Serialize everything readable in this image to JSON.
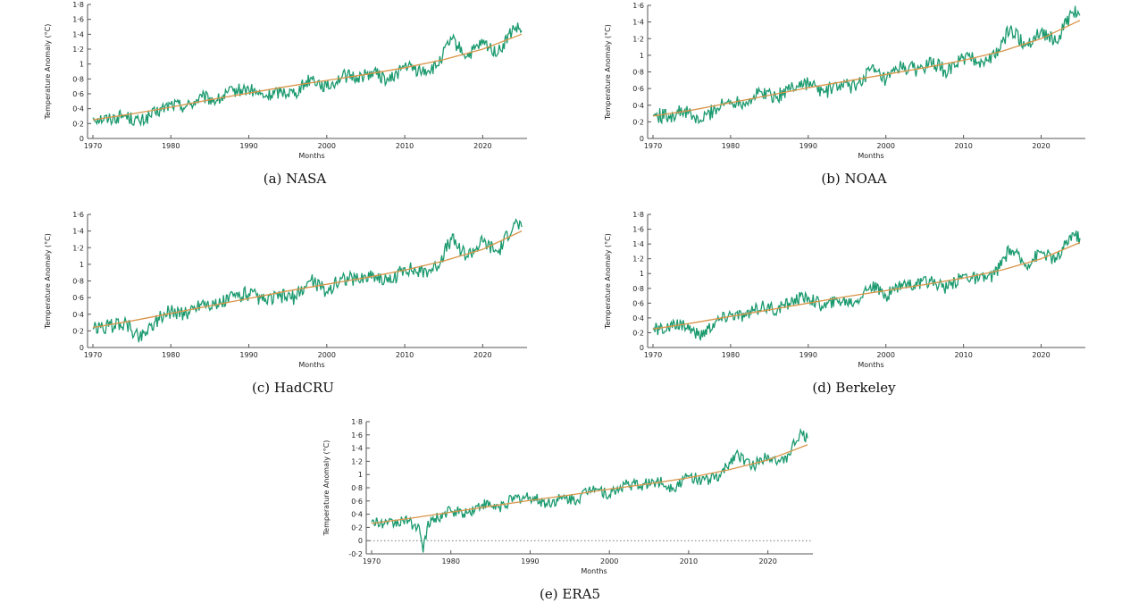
{
  "chart_data": [
    {
      "type": "line",
      "caption": "(a) NASA",
      "xlabel": "Months",
      "ylabel": "Temperature Anomaly (°C)",
      "xlim": [
        1970,
        2025
      ],
      "ylim": [
        0,
        1.8
      ],
      "xticks": [
        1970,
        1980,
        1990,
        2000,
        2010,
        2020
      ],
      "yticks": [
        0,
        0.2,
        0.4,
        0.6,
        0.8,
        1,
        1.2,
        1.4,
        1.6,
        1.8
      ],
      "series": [
        {
          "x": [
            1970,
            1972,
            1974,
            1976,
            1978,
            1980,
            1982,
            1984,
            1986,
            1988,
            1990,
            1992,
            1994,
            1996,
            1998,
            2000,
            2002,
            2004,
            2006,
            2008,
            2010,
            2012,
            2014,
            2016,
            2018,
            2020,
            2022,
            2024,
            2025
          ],
          "y": [
            0.28,
            0.26,
            0.31,
            0.22,
            0.34,
            0.46,
            0.43,
            0.55,
            0.51,
            0.64,
            0.66,
            0.56,
            0.63,
            0.62,
            0.82,
            0.68,
            0.84,
            0.82,
            0.89,
            0.77,
            0.98,
            0.9,
            0.95,
            1.33,
            1.1,
            1.28,
            1.15,
            1.48,
            1.45
          ]
        },
        {
          "x": [
            1970,
            1975,
            1980,
            1985,
            1990,
            1995,
            2000,
            2005,
            2010,
            2015,
            2020,
            2025
          ],
          "y": [
            0.25,
            0.33,
            0.42,
            0.52,
            0.61,
            0.7,
            0.78,
            0.86,
            0.95,
            1.06,
            1.2,
            1.4
          ]
        }
      ]
    },
    {
      "type": "line",
      "caption": "(b) NOAA",
      "xlabel": "Months",
      "ylabel": "Temperature Anomaly (°C)",
      "xlim": [
        1970,
        2025
      ],
      "ylim": [
        0,
        1.6
      ],
      "xticks": [
        1970,
        1980,
        1990,
        2000,
        2010,
        2020
      ],
      "yticks": [
        0,
        0.2,
        0.4,
        0.6,
        0.8,
        1,
        1.2,
        1.4,
        1.6
      ],
      "series": [
        {
          "x": [
            1970,
            1972,
            1974,
            1976,
            1978,
            1980,
            1982,
            1984,
            1986,
            1988,
            1990,
            1992,
            1994,
            1996,
            1998,
            2000,
            2002,
            2004,
            2006,
            2008,
            2010,
            2012,
            2014,
            2016,
            2018,
            2020,
            2022,
            2024,
            2025
          ],
          "y": [
            0.28,
            0.27,
            0.33,
            0.2,
            0.36,
            0.45,
            0.44,
            0.56,
            0.5,
            0.63,
            0.67,
            0.55,
            0.64,
            0.62,
            0.83,
            0.69,
            0.86,
            0.83,
            0.9,
            0.8,
            0.98,
            0.92,
            0.98,
            1.32,
            1.12,
            1.3,
            1.16,
            1.52,
            1.48
          ]
        },
        {
          "x": [
            1970,
            1975,
            1980,
            1985,
            1990,
            1995,
            2000,
            2005,
            2010,
            2015,
            2020,
            2025
          ],
          "y": [
            0.27,
            0.34,
            0.43,
            0.52,
            0.61,
            0.69,
            0.77,
            0.85,
            0.94,
            1.05,
            1.2,
            1.42
          ]
        }
      ]
    },
    {
      "type": "line",
      "caption": "(c) HadCRU",
      "xlabel": "Months",
      "ylabel": "Temperature Anomaly (°C)",
      "xlim": [
        1970,
        2025
      ],
      "ylim": [
        0,
        1.6
      ],
      "xticks": [
        1970,
        1980,
        1990,
        2000,
        2010,
        2020
      ],
      "yticks": [
        0,
        0.2,
        0.4,
        0.6,
        0.8,
        1,
        1.2,
        1.4,
        1.6
      ],
      "series": [
        {
          "x": [
            1970,
            1972,
            1974,
            1976,
            1978,
            1980,
            1982,
            1984,
            1986,
            1988,
            1990,
            1992,
            1994,
            1996,
            1998,
            2000,
            2002,
            2004,
            2006,
            2008,
            2010,
            2012,
            2014,
            2016,
            2018,
            2020,
            2022,
            2024,
            2025
          ],
          "y": [
            0.22,
            0.25,
            0.3,
            0.12,
            0.32,
            0.44,
            0.4,
            0.55,
            0.5,
            0.62,
            0.65,
            0.55,
            0.62,
            0.6,
            0.82,
            0.67,
            0.84,
            0.82,
            0.88,
            0.78,
            0.96,
            0.9,
            0.96,
            1.3,
            1.1,
            1.27,
            1.14,
            1.5,
            1.45
          ]
        },
        {
          "x": [
            1970,
            1975,
            1980,
            1985,
            1990,
            1995,
            2000,
            2005,
            2010,
            2015,
            2020,
            2025
          ],
          "y": [
            0.24,
            0.32,
            0.41,
            0.5,
            0.59,
            0.68,
            0.76,
            0.84,
            0.93,
            1.04,
            1.18,
            1.4
          ]
        }
      ]
    },
    {
      "type": "line",
      "caption": "(d) Berkeley",
      "xlabel": "Months",
      "ylabel": "Temperature Anomaly (°C)",
      "xlim": [
        1970,
        2025
      ],
      "ylim": [
        0,
        1.8
      ],
      "xticks": [
        1970,
        1980,
        1990,
        2000,
        2010,
        2020
      ],
      "yticks": [
        0,
        0.2,
        0.4,
        0.6,
        0.8,
        1,
        1.2,
        1.4,
        1.6,
        1.8
      ],
      "series": [
        {
          "x": [
            1970,
            1972,
            1974,
            1976,
            1978,
            1980,
            1982,
            1984,
            1986,
            1988,
            1990,
            1992,
            1994,
            1996,
            1998,
            2000,
            2002,
            2004,
            2006,
            2008,
            2010,
            2012,
            2014,
            2016,
            2018,
            2020,
            2022,
            2024,
            2025
          ],
          "y": [
            0.24,
            0.26,
            0.32,
            0.15,
            0.34,
            0.45,
            0.42,
            0.56,
            0.5,
            0.64,
            0.68,
            0.56,
            0.64,
            0.62,
            0.84,
            0.7,
            0.87,
            0.84,
            0.9,
            0.8,
            0.98,
            0.92,
            0.98,
            1.34,
            1.12,
            1.3,
            1.18,
            1.55,
            1.48
          ]
        },
        {
          "x": [
            1970,
            1975,
            1980,
            1985,
            1990,
            1995,
            2000,
            2005,
            2010,
            2015,
            2020,
            2025
          ],
          "y": [
            0.25,
            0.33,
            0.42,
            0.51,
            0.6,
            0.69,
            0.77,
            0.85,
            0.94,
            1.05,
            1.2,
            1.42
          ]
        }
      ]
    },
    {
      "type": "line",
      "caption": "(e) ERA5",
      "xlabel": "Months",
      "ylabel": "Temperature Anomaly (°C)",
      "xlim": [
        1970,
        2025
      ],
      "ylim": [
        -0.2,
        1.8
      ],
      "xticks": [
        1970,
        1980,
        1990,
        2000,
        2010,
        2020
      ],
      "yticks": [
        -0.2,
        0,
        0.2,
        0.4,
        0.6,
        0.8,
        1,
        1.2,
        1.4,
        1.6,
        1.8
      ],
      "zero_line": true,
      "series": [
        {
          "x": [
            1970,
            1972,
            1974,
            1976,
            1976.5,
            1977,
            1978,
            1980,
            1982,
            1984,
            1986,
            1988,
            1990,
            1992,
            1994,
            1996,
            1998,
            2000,
            2002,
            2004,
            2006,
            2008,
            2010,
            2012,
            2014,
            2016,
            2018,
            2020,
            2022,
            2024,
            2025
          ],
          "y": [
            0.28,
            0.25,
            0.3,
            0.22,
            -0.18,
            0.2,
            0.34,
            0.45,
            0.42,
            0.55,
            0.5,
            0.63,
            0.66,
            0.56,
            0.63,
            0.62,
            0.83,
            0.69,
            0.85,
            0.83,
            0.9,
            0.8,
            0.97,
            0.92,
            0.97,
            1.33,
            1.12,
            1.3,
            1.17,
            1.6,
            1.55
          ]
        },
        {
          "x": [
            1970,
            1975,
            1980,
            1985,
            1990,
            1995,
            2000,
            2005,
            2010,
            2015,
            2020,
            2025
          ],
          "y": [
            0.26,
            0.34,
            0.43,
            0.52,
            0.61,
            0.69,
            0.78,
            0.86,
            0.95,
            1.07,
            1.22,
            1.45
          ]
        }
      ]
    }
  ]
}
